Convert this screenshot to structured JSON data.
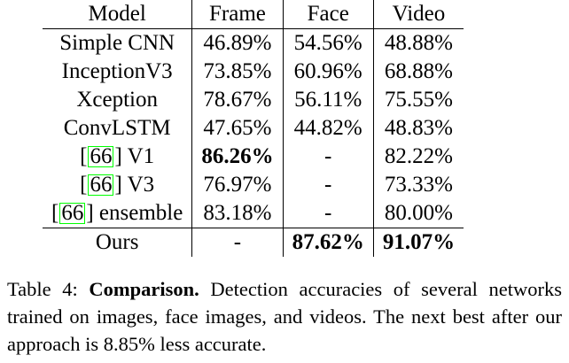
{
  "table": {
    "headers": [
      "Model",
      "Frame",
      "Face",
      "Video"
    ],
    "rows": [
      {
        "model_cite": "",
        "model": "Simple CNN",
        "frame": "46.89%",
        "face": "54.56%",
        "video": "48.88%"
      },
      {
        "model_cite": "",
        "model": "InceptionV3",
        "frame": "73.85%",
        "face": "60.96%",
        "video": "68.88%"
      },
      {
        "model_cite": "",
        "model": "Xception",
        "frame": "78.67%",
        "face": "56.11%",
        "video": "75.55%"
      },
      {
        "model_cite": "",
        "model": "ConvLSTM",
        "frame": "47.65%",
        "face": "44.82%",
        "video": "48.83%"
      },
      {
        "model_cite": "66",
        "model": "V1",
        "frame": "86.26%",
        "face": "-",
        "video": "82.22%"
      },
      {
        "model_cite": "66",
        "model": "V3",
        "frame": "76.97%",
        "face": "-",
        "video": "73.33%"
      },
      {
        "model_cite": "66",
        "model": "ensemble",
        "frame": "83.18%",
        "face": "-",
        "video": "80.00%"
      },
      {
        "model_cite": "",
        "model": "Ours",
        "frame": "-",
        "face": "87.62%",
        "video": "91.07%"
      }
    ]
  },
  "caption": {
    "label": "Table 4:",
    "title": "Comparison.",
    "text": "Detection accuracies of several networks trained on images, face images, and videos. The next best after our approach is 8.85% less accurate."
  },
  "colors": {
    "citation_box": "#00ff00"
  }
}
